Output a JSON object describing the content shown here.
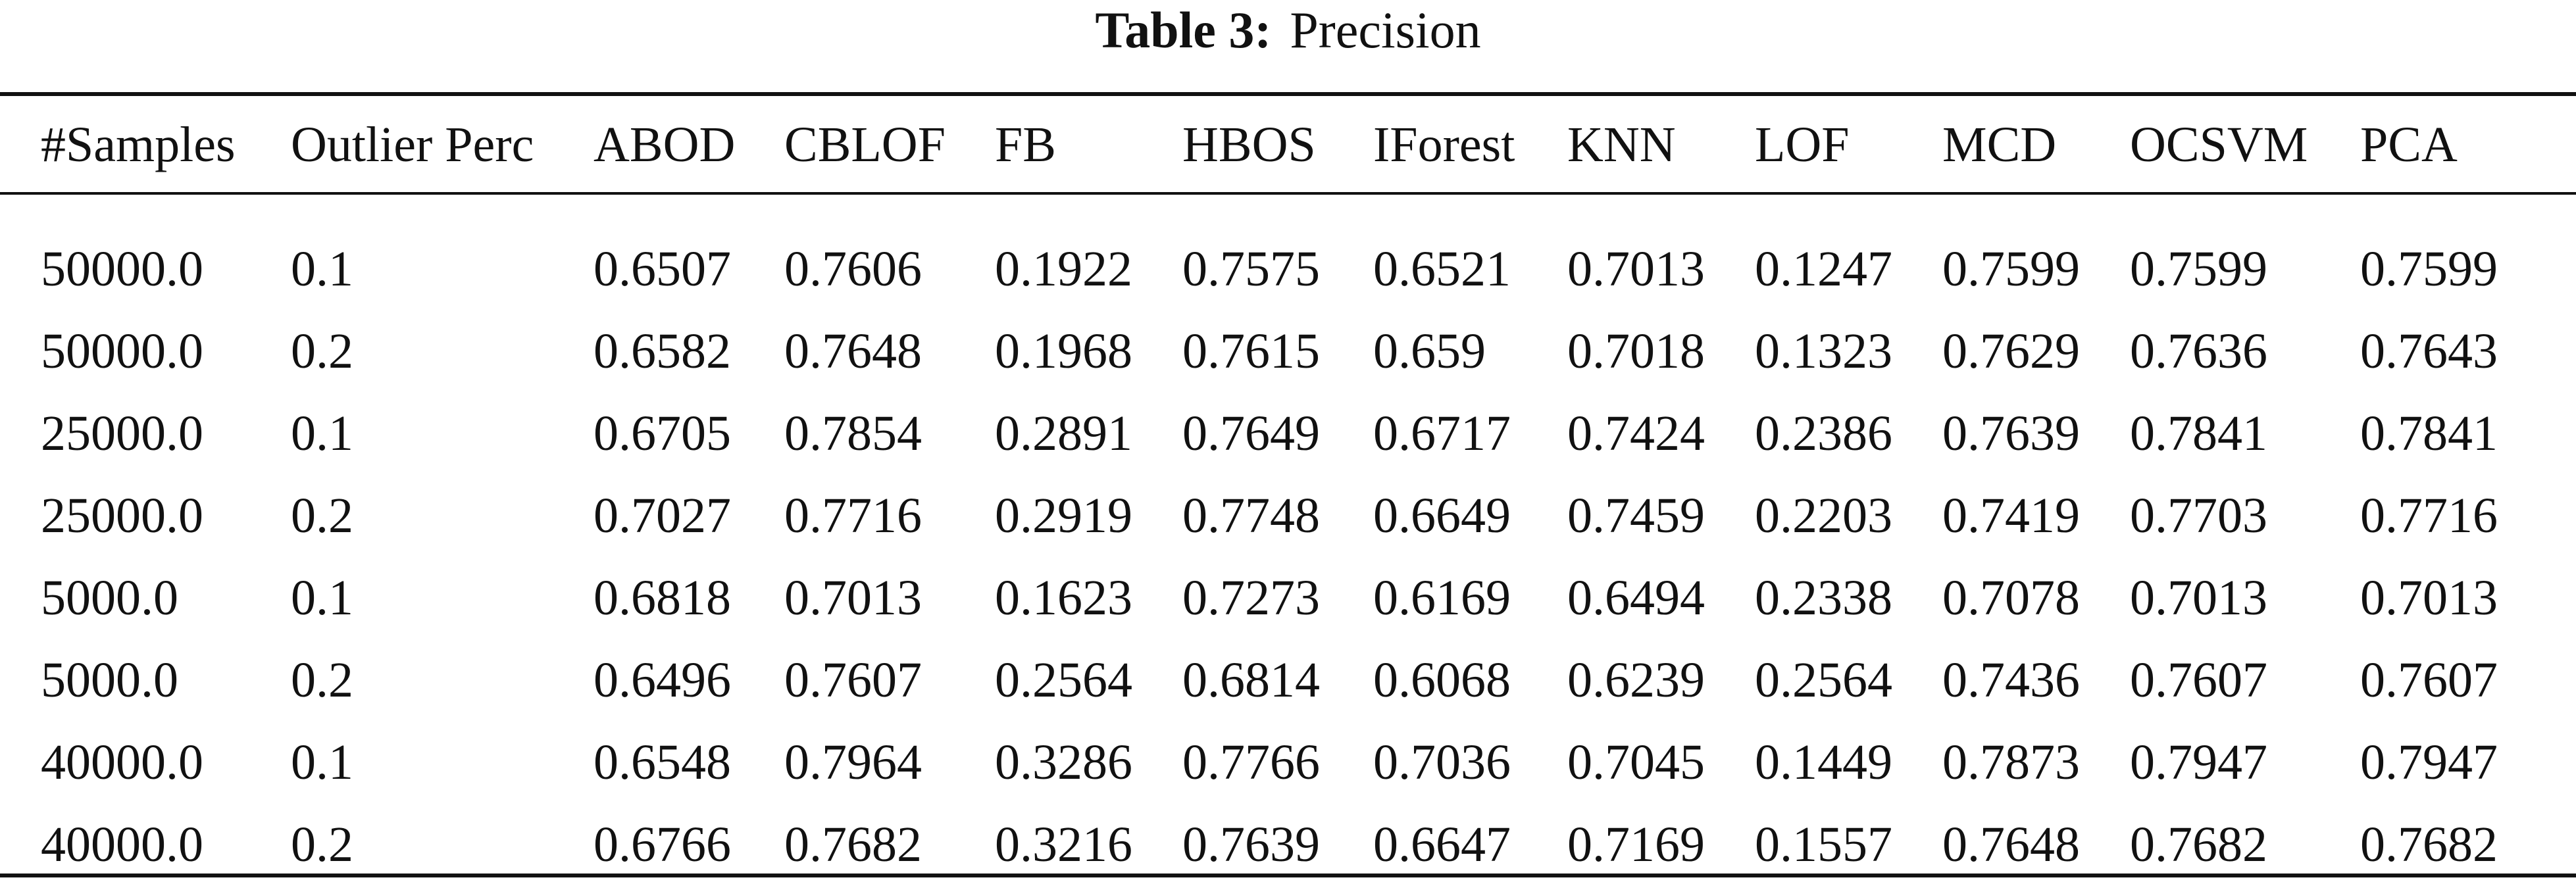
{
  "caption": {
    "label": "Table 3:",
    "title": "Precision"
  },
  "table": {
    "columns": [
      "#Samples",
      "Outlier Perc",
      "ABOD",
      "CBLOF",
      "FB",
      "HBOS",
      "IForest",
      "KNN",
      "LOF",
      "MCD",
      "OCSVM",
      "PCA"
    ],
    "rows": [
      [
        "50000.0",
        "0.1",
        "0.6507",
        "0.7606",
        "0.1922",
        "0.7575",
        "0.6521",
        "0.7013",
        "0.1247",
        "0.7599",
        "0.7599",
        "0.7599"
      ],
      [
        "50000.0",
        "0.2",
        "0.6582",
        "0.7648",
        "0.1968",
        "0.7615",
        "0.659",
        "0.7018",
        "0.1323",
        "0.7629",
        "0.7636",
        "0.7643"
      ],
      [
        "25000.0",
        "0.1",
        "0.6705",
        "0.7854",
        "0.2891",
        "0.7649",
        "0.6717",
        "0.7424",
        "0.2386",
        "0.7639",
        "0.7841",
        "0.7841"
      ],
      [
        "25000.0",
        "0.2",
        "0.7027",
        "0.7716",
        "0.2919",
        "0.7748",
        "0.6649",
        "0.7459",
        "0.2203",
        "0.7419",
        "0.7703",
        "0.7716"
      ],
      [
        "5000.0",
        "0.1",
        "0.6818",
        "0.7013",
        "0.1623",
        "0.7273",
        "0.6169",
        "0.6494",
        "0.2338",
        "0.7078",
        "0.7013",
        "0.7013"
      ],
      [
        "5000.0",
        "0.2",
        "0.6496",
        "0.7607",
        "0.2564",
        "0.6814",
        "0.6068",
        "0.6239",
        "0.2564",
        "0.7436",
        "0.7607",
        "0.7607"
      ],
      [
        "40000.0",
        "0.1",
        "0.6548",
        "0.7964",
        "0.3286",
        "0.7766",
        "0.7036",
        "0.7045",
        "0.1449",
        "0.7873",
        "0.7947",
        "0.7947"
      ],
      [
        "40000.0",
        "0.2",
        "0.6766",
        "0.7682",
        "0.3216",
        "0.7639",
        "0.6647",
        "0.7169",
        "0.1557",
        "0.7648",
        "0.7682",
        "0.7682"
      ]
    ]
  }
}
